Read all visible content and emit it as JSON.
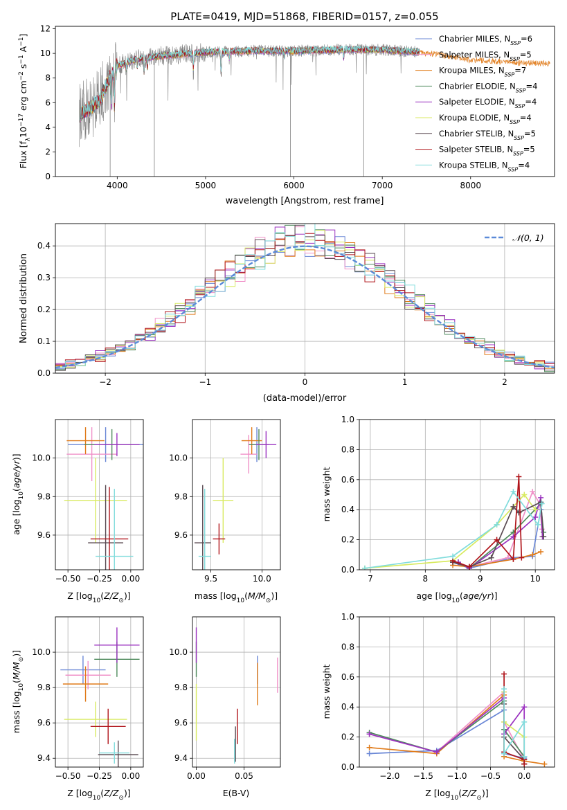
{
  "figure": {
    "title": "PLATE=0419, MJD=51868, FIBERID=0157, z=0.055"
  },
  "models": [
    {
      "name": "Chabrier MILES",
      "nssp": "6",
      "color": "#6a87d6"
    },
    {
      "name": "Salpeter MILES",
      "nssp": "5",
      "color": "#f090c8"
    },
    {
      "name": "Kroupa MILES",
      "nssp": "7",
      "color": "#e07b1a"
    },
    {
      "name": "Chabrier ELODIE",
      "nssp": "4",
      "color": "#4e8a5c"
    },
    {
      "name": "Salpeter ELODIE",
      "nssp": "4",
      "color": "#9b32c0"
    },
    {
      "name": "Kroupa ELODIE",
      "nssp": "4",
      "color": "#d8ea60"
    },
    {
      "name": "Chabrier STELIB",
      "nssp": "5",
      "color": "#5a4a52"
    },
    {
      "name": "Salpeter STELIB",
      "nssp": "5",
      "color": "#b0141a"
    },
    {
      "name": "Kroupa STELIB",
      "nssp": "4",
      "color": "#80dcdc"
    }
  ],
  "chart_data": [
    {
      "id": "spectrum",
      "type": "line",
      "xlabel": "wavelength [Angstrom, rest frame]",
      "ylabel": "Flux [f_λ10^-17 erg cm^-2 s^-1 A^-1]",
      "xlim": [
        3300,
        8950
      ],
      "ylim": [
        0,
        12.2
      ],
      "xticks": [
        4000,
        5000,
        6000,
        7000,
        8000
      ],
      "yticks": [
        0,
        2,
        4,
        6,
        8,
        10,
        12
      ],
      "data_color": "#808080",
      "data_range": [
        3570,
        7420
      ],
      "continuum": [
        [
          3570,
          5.0
        ],
        [
          3700,
          5.6
        ],
        [
          3800,
          6.2
        ],
        [
          3900,
          7.8
        ],
        [
          4000,
          9.0
        ],
        [
          4200,
          9.5
        ],
        [
          4500,
          9.8
        ],
        [
          5000,
          10.1
        ],
        [
          5500,
          10.2
        ],
        [
          6000,
          10.2
        ],
        [
          6500,
          10.3
        ],
        [
          7000,
          10.3
        ],
        [
          7400,
          10.1
        ],
        [
          7600,
          10.0
        ],
        [
          8000,
          9.5
        ],
        [
          8500,
          9.3
        ],
        [
          8900,
          9.2
        ]
      ],
      "absorption_lines": [
        [
          3934,
          5.5
        ],
        [
          3969,
          5.3
        ],
        [
          4102,
          8.6
        ],
        [
          4227,
          8.8
        ],
        [
          4304,
          8.3
        ],
        [
          4341,
          8.7
        ],
        [
          4861,
          8.6
        ],
        [
          5175,
          8.0
        ],
        [
          5270,
          9.5
        ],
        [
          5892,
          9.6
        ],
        [
          6563,
          9.5
        ]
      ],
      "data_spikes_down": [
        [
          4420,
          0
        ],
        [
          5960,
          0
        ],
        [
          6790,
          0
        ],
        [
          3920,
          0
        ]
      ]
    },
    {
      "id": "residuals",
      "type": "histogram",
      "xlabel": "(data-model)/error",
      "ylabel": "Normed distribution",
      "xlim": [
        -2.5,
        2.5
      ],
      "ylim": [
        0,
        0.47
      ],
      "xticks": [
        -2,
        -1,
        0,
        1,
        2
      ],
      "yticks": [
        0,
        0.1,
        0.2,
        0.3,
        0.4
      ],
      "bin_width": 0.1,
      "reference": {
        "label": "N(0,1)",
        "mean": 0,
        "sigma": 1,
        "color": "#5b8ad8"
      }
    },
    {
      "id": "age_vs_Z",
      "type": "scatter",
      "xlabel": "Z [log10(Z/Z_sun)]",
      "ylabel": "age [log10(age/yr)]",
      "xlim": [
        -0.6,
        0.1
      ],
      "ylim": [
        9.42,
        10.2
      ],
      "xticks": [
        -0.5,
        -0.25,
        0.0
      ],
      "yticks": [
        9.6,
        9.8,
        10.0
      ],
      "points": [
        {
          "model": 0,
          "x": -0.2,
          "xerr": 0.3,
          "y": 10.07,
          "yerr": 0.09
        },
        {
          "model": 1,
          "x": -0.31,
          "xerr": 0.2,
          "y": 10.02,
          "yerr": 0.14
        },
        {
          "model": 2,
          "x": -0.36,
          "xerr": 0.15,
          "y": 10.09,
          "yerr": 0.07
        },
        {
          "model": 3,
          "x": -0.15,
          "xerr": 0.22,
          "y": 10.07,
          "yerr": 0.08
        },
        {
          "model": 4,
          "x": -0.11,
          "xerr": 0.18,
          "y": 10.07,
          "yerr": 0.06
        },
        {
          "model": 5,
          "x": -0.28,
          "xerr": 0.25,
          "y": 9.78,
          "yerr": 0.22
        },
        {
          "model": 6,
          "x": -0.2,
          "xerr": 0.14,
          "y": 9.56,
          "yerr": 0.3
        },
        {
          "model": 7,
          "x": -0.17,
          "xerr": 0.15,
          "y": 9.58,
          "yerr": 0.27
        },
        {
          "model": 8,
          "x": -0.13,
          "xerr": 0.15,
          "y": 9.49,
          "yerr": 0.35
        }
      ]
    },
    {
      "id": "age_vs_mass",
      "type": "scatter",
      "xlabel": "mass [log10(M/M_sun)]",
      "ylabel": "",
      "xlim": [
        9.32,
        10.18
      ],
      "ylim": [
        9.42,
        10.2
      ],
      "xticks": [
        9.5,
        10.0
      ],
      "yticks": [
        9.6,
        9.8,
        10.0
      ],
      "points": [
        {
          "model": 0,
          "x": 9.95,
          "xerr": 0.08,
          "y": 10.07,
          "yerr": 0.09
        },
        {
          "model": 1,
          "x": 9.87,
          "xerr": 0.08,
          "y": 10.02,
          "yerr": 0.1
        },
        {
          "model": 2,
          "x": 9.9,
          "xerr": 0.1,
          "y": 10.09,
          "yerr": 0.07
        },
        {
          "model": 3,
          "x": 9.97,
          "xerr": 0.1,
          "y": 10.07,
          "yerr": 0.08
        },
        {
          "model": 4,
          "x": 10.04,
          "xerr": 0.1,
          "y": 10.07,
          "yerr": 0.07
        },
        {
          "model": 5,
          "x": 9.62,
          "xerr": 0.1,
          "y": 9.78,
          "yerr": 0.22
        },
        {
          "model": 6,
          "x": 9.42,
          "xerr": 0.08,
          "y": 9.56,
          "yerr": 0.3
        },
        {
          "model": 7,
          "x": 9.58,
          "xerr": 0.06,
          "y": 9.58,
          "yerr": 0.08
        },
        {
          "model": 8,
          "x": 9.44,
          "xerr": 0.06,
          "y": 9.49,
          "yerr": 0.35
        }
      ]
    },
    {
      "id": "weight_vs_age",
      "type": "line",
      "xlabel": "age [log10(age/yr)]",
      "ylabel": "mass weight",
      "xlim": [
        6.8,
        10.35
      ],
      "ylim": [
        0,
        1.0
      ],
      "xticks": [
        7,
        8,
        9,
        10
      ],
      "yticks": [
        0,
        0.2,
        0.4,
        0.6,
        0.8,
        1.0
      ],
      "series": [
        {
          "model": 0,
          "points": [
            [
              8.5,
              0.05
            ],
            [
              8.8,
              0.01
            ],
            [
              9.6,
              0.08
            ],
            [
              9.95,
              0.09
            ],
            [
              10.1,
              0.4
            ],
            [
              10.15,
              0.22
            ]
          ]
        },
        {
          "model": 1,
          "points": [
            [
              8.5,
              0.06
            ],
            [
              8.8,
              0.02
            ],
            [
              9.5,
              0.08
            ],
            [
              9.95,
              0.52
            ],
            [
              10.08,
              0.44
            ],
            [
              10.12,
              0.27
            ]
          ]
        },
        {
          "model": 2,
          "points": [
            [
              8.5,
              0.03
            ],
            [
              8.8,
              0.02
            ],
            [
              9.6,
              0.07
            ],
            [
              9.95,
              0.1
            ],
            [
              10.1,
              0.12
            ]
          ]
        },
        {
          "model": 3,
          "points": [
            [
              8.6,
              0.05
            ],
            [
              8.8,
              0.01
            ],
            [
              9.6,
              0.25
            ],
            [
              10.1,
              0.44
            ],
            [
              10.15,
              0.25
            ]
          ]
        },
        {
          "model": 4,
          "points": [
            [
              8.6,
              0.05
            ],
            [
              8.8,
              0.01
            ],
            [
              9.6,
              0.22
            ],
            [
              10.0,
              0.35
            ],
            [
              10.1,
              0.48
            ],
            [
              10.13,
              0.22
            ]
          ]
        },
        {
          "model": 5,
          "points": [
            [
              6.9,
              0.01
            ],
            [
              8.5,
              0.06
            ],
            [
              9.3,
              0.3
            ],
            [
              9.8,
              0.5
            ],
            [
              10.0,
              0.4
            ]
          ]
        },
        {
          "model": 6,
          "points": [
            [
              8.5,
              0.05
            ],
            [
              8.8,
              0.02
            ],
            [
              9.2,
              0.08
            ],
            [
              9.6,
              0.42
            ],
            [
              9.7,
              0.38
            ],
            [
              10.1,
              0.45
            ],
            [
              10.15,
              0.22
            ]
          ]
        },
        {
          "model": 7,
          "points": [
            [
              8.5,
              0.06
            ],
            [
              8.8,
              0.02
            ],
            [
              9.3,
              0.2
            ],
            [
              9.6,
              0.07
            ],
            [
              9.7,
              0.62
            ],
            [
              9.75,
              0.08
            ]
          ]
        },
        {
          "model": 8,
          "points": [
            [
              6.9,
              0.01
            ],
            [
              8.5,
              0.09
            ],
            [
              9.3,
              0.3
            ],
            [
              9.6,
              0.52
            ],
            [
              10.05,
              0.3
            ],
            [
              10.12,
              0.44
            ]
          ]
        }
      ]
    },
    {
      "id": "mass_vs_Z",
      "type": "scatter",
      "xlabel": "Z [log10(Z/Z_sun)]",
      "ylabel": "mass [log10(M/M_sun)]",
      "xlim": [
        -0.6,
        0.1
      ],
      "ylim": [
        9.35,
        10.2
      ],
      "xticks": [
        -0.5,
        -0.25,
        0.0
      ],
      "yticks": [
        9.4,
        9.6,
        9.8,
        10.0
      ],
      "points": [
        {
          "model": 0,
          "x": -0.38,
          "xerr": 0.18,
          "y": 9.9,
          "yerr": 0.08
        },
        {
          "model": 1,
          "x": -0.34,
          "xerr": 0.18,
          "y": 9.87,
          "yerr": 0.08
        },
        {
          "model": 2,
          "x": -0.36,
          "xerr": 0.18,
          "y": 9.82,
          "yerr": 0.1
        },
        {
          "model": 3,
          "x": -0.11,
          "xerr": 0.18,
          "y": 9.96,
          "yerr": 0.1
        },
        {
          "model": 4,
          "x": -0.11,
          "xerr": 0.18,
          "y": 10.04,
          "yerr": 0.1
        },
        {
          "model": 5,
          "x": -0.28,
          "xerr": 0.25,
          "y": 9.62,
          "yerr": 0.1
        },
        {
          "model": 6,
          "x": -0.1,
          "xerr": 0.16,
          "y": 9.42,
          "yerr": 0.08
        },
        {
          "model": 7,
          "x": -0.18,
          "xerr": 0.14,
          "y": 9.58,
          "yerr": 0.1
        },
        {
          "model": 8,
          "x": -0.13,
          "xerr": 0.12,
          "y": 9.43,
          "yerr": 0.06
        }
      ]
    },
    {
      "id": "mass_vs_ebv",
      "type": "scatter",
      "xlabel": "E(B-V)",
      "ylabel": "",
      "xlim": [
        -0.004,
        0.088
      ],
      "ylim": [
        9.35,
        10.2
      ],
      "xticks": [
        0.0,
        0.05
      ],
      "yticks": [
        9.4,
        9.6,
        9.8,
        10.0
      ],
      "points": [
        {
          "model": 0,
          "x": 0.064,
          "xerr": 0,
          "y": 9.9,
          "yerr": 0.08
        },
        {
          "model": 1,
          "x": 0.085,
          "xerr": 0,
          "y": 9.87,
          "yerr": 0.1
        },
        {
          "model": 2,
          "x": 0.064,
          "xerr": 0,
          "y": 9.82,
          "yerr": 0.12
        },
        {
          "model": 3,
          "x": 0.0,
          "xerr": 0,
          "y": 9.96,
          "yerr": 0.1
        },
        {
          "model": 4,
          "x": 0.0,
          "xerr": 0,
          "y": 10.04,
          "yerr": 0.1
        },
        {
          "model": 5,
          "x": 0.0,
          "xerr": 0,
          "y": 9.66,
          "yerr": 0.16
        },
        {
          "model": 6,
          "x": 0.041,
          "xerr": 0,
          "y": 9.48,
          "yerr": 0.1
        },
        {
          "model": 7,
          "x": 0.043,
          "xerr": 0,
          "y": 9.58,
          "yerr": 0.1
        },
        {
          "model": 8,
          "x": 0.04,
          "xerr": 0,
          "y": 9.44,
          "yerr": 0.07
        }
      ]
    },
    {
      "id": "weight_vs_Z",
      "type": "line",
      "xlabel": "Z [log10(Z/Z_sun)]",
      "ylabel": "mass weight",
      "xlim": [
        -2.45,
        0.45
      ],
      "ylim": [
        0,
        1.0
      ],
      "xticks": [
        -2.0,
        -1.5,
        -1.0,
        -0.5,
        0.0
      ],
      "yticks": [
        0,
        0.2,
        0.4,
        0.6,
        0.8,
        1.0
      ],
      "series": [
        {
          "model": 0,
          "points": [
            [
              -2.3,
              0.09
            ],
            [
              -1.3,
              0.11
            ],
            [
              -0.3,
              0.38
            ],
            [
              -0.3,
              0.09
            ],
            [
              0.0,
              0.06
            ],
            [
              0.0,
              0.02
            ]
          ]
        },
        {
          "model": 1,
          "points": [
            [
              -2.3,
              0.22
            ],
            [
              -1.3,
              0.1
            ],
            [
              -0.3,
              0.5
            ],
            [
              -0.3,
              0.3
            ],
            [
              0.0,
              0.05
            ],
            [
              0.0,
              0.02
            ]
          ]
        },
        {
          "model": 2,
          "points": [
            [
              -2.3,
              0.13
            ],
            [
              -1.3,
              0.09
            ],
            [
              -0.3,
              0.48
            ],
            [
              -0.3,
              0.07
            ],
            [
              0.0,
              0.04
            ],
            [
              0.3,
              0.02
            ]
          ]
        },
        {
          "model": 3,
          "points": [
            [
              -2.3,
              0.23
            ],
            [
              -1.3,
              0.1
            ],
            [
              -0.3,
              0.44
            ],
            [
              -0.3,
              0.25
            ],
            [
              0.0,
              0.07
            ],
            [
              0.0,
              0.02
            ]
          ]
        },
        {
          "model": 4,
          "points": [
            [
              -2.3,
              0.22
            ],
            [
              -1.3,
              0.1
            ],
            [
              -0.3,
              0.46
            ],
            [
              -0.3,
              0.22
            ],
            [
              0.0,
              0.4
            ],
            [
              0.0,
              0.02
            ]
          ]
        },
        {
          "model": 5,
          "points": [
            [
              -0.3,
              0.5
            ],
            [
              -0.3,
              0.3
            ],
            [
              0.0,
              0.2
            ],
            [
              0.0,
              0.02
            ]
          ]
        },
        {
          "model": 6,
          "points": [
            [
              -0.3,
              0.42
            ],
            [
              -0.3,
              0.2
            ],
            [
              0.0,
              0.05
            ],
            [
              0.0,
              0.02
            ]
          ]
        },
        {
          "model": 7,
          "points": [
            [
              -0.3,
              0.62
            ],
            [
              -0.3,
              0.1
            ],
            [
              0.0,
              0.05
            ],
            [
              0.0,
              0.02
            ]
          ]
        },
        {
          "model": 8,
          "points": [
            [
              -0.3,
              0.52
            ],
            [
              -0.3,
              0.09
            ],
            [
              0.0,
              0.3
            ],
            [
              0.0,
              0.07
            ]
          ]
        }
      ]
    }
  ]
}
